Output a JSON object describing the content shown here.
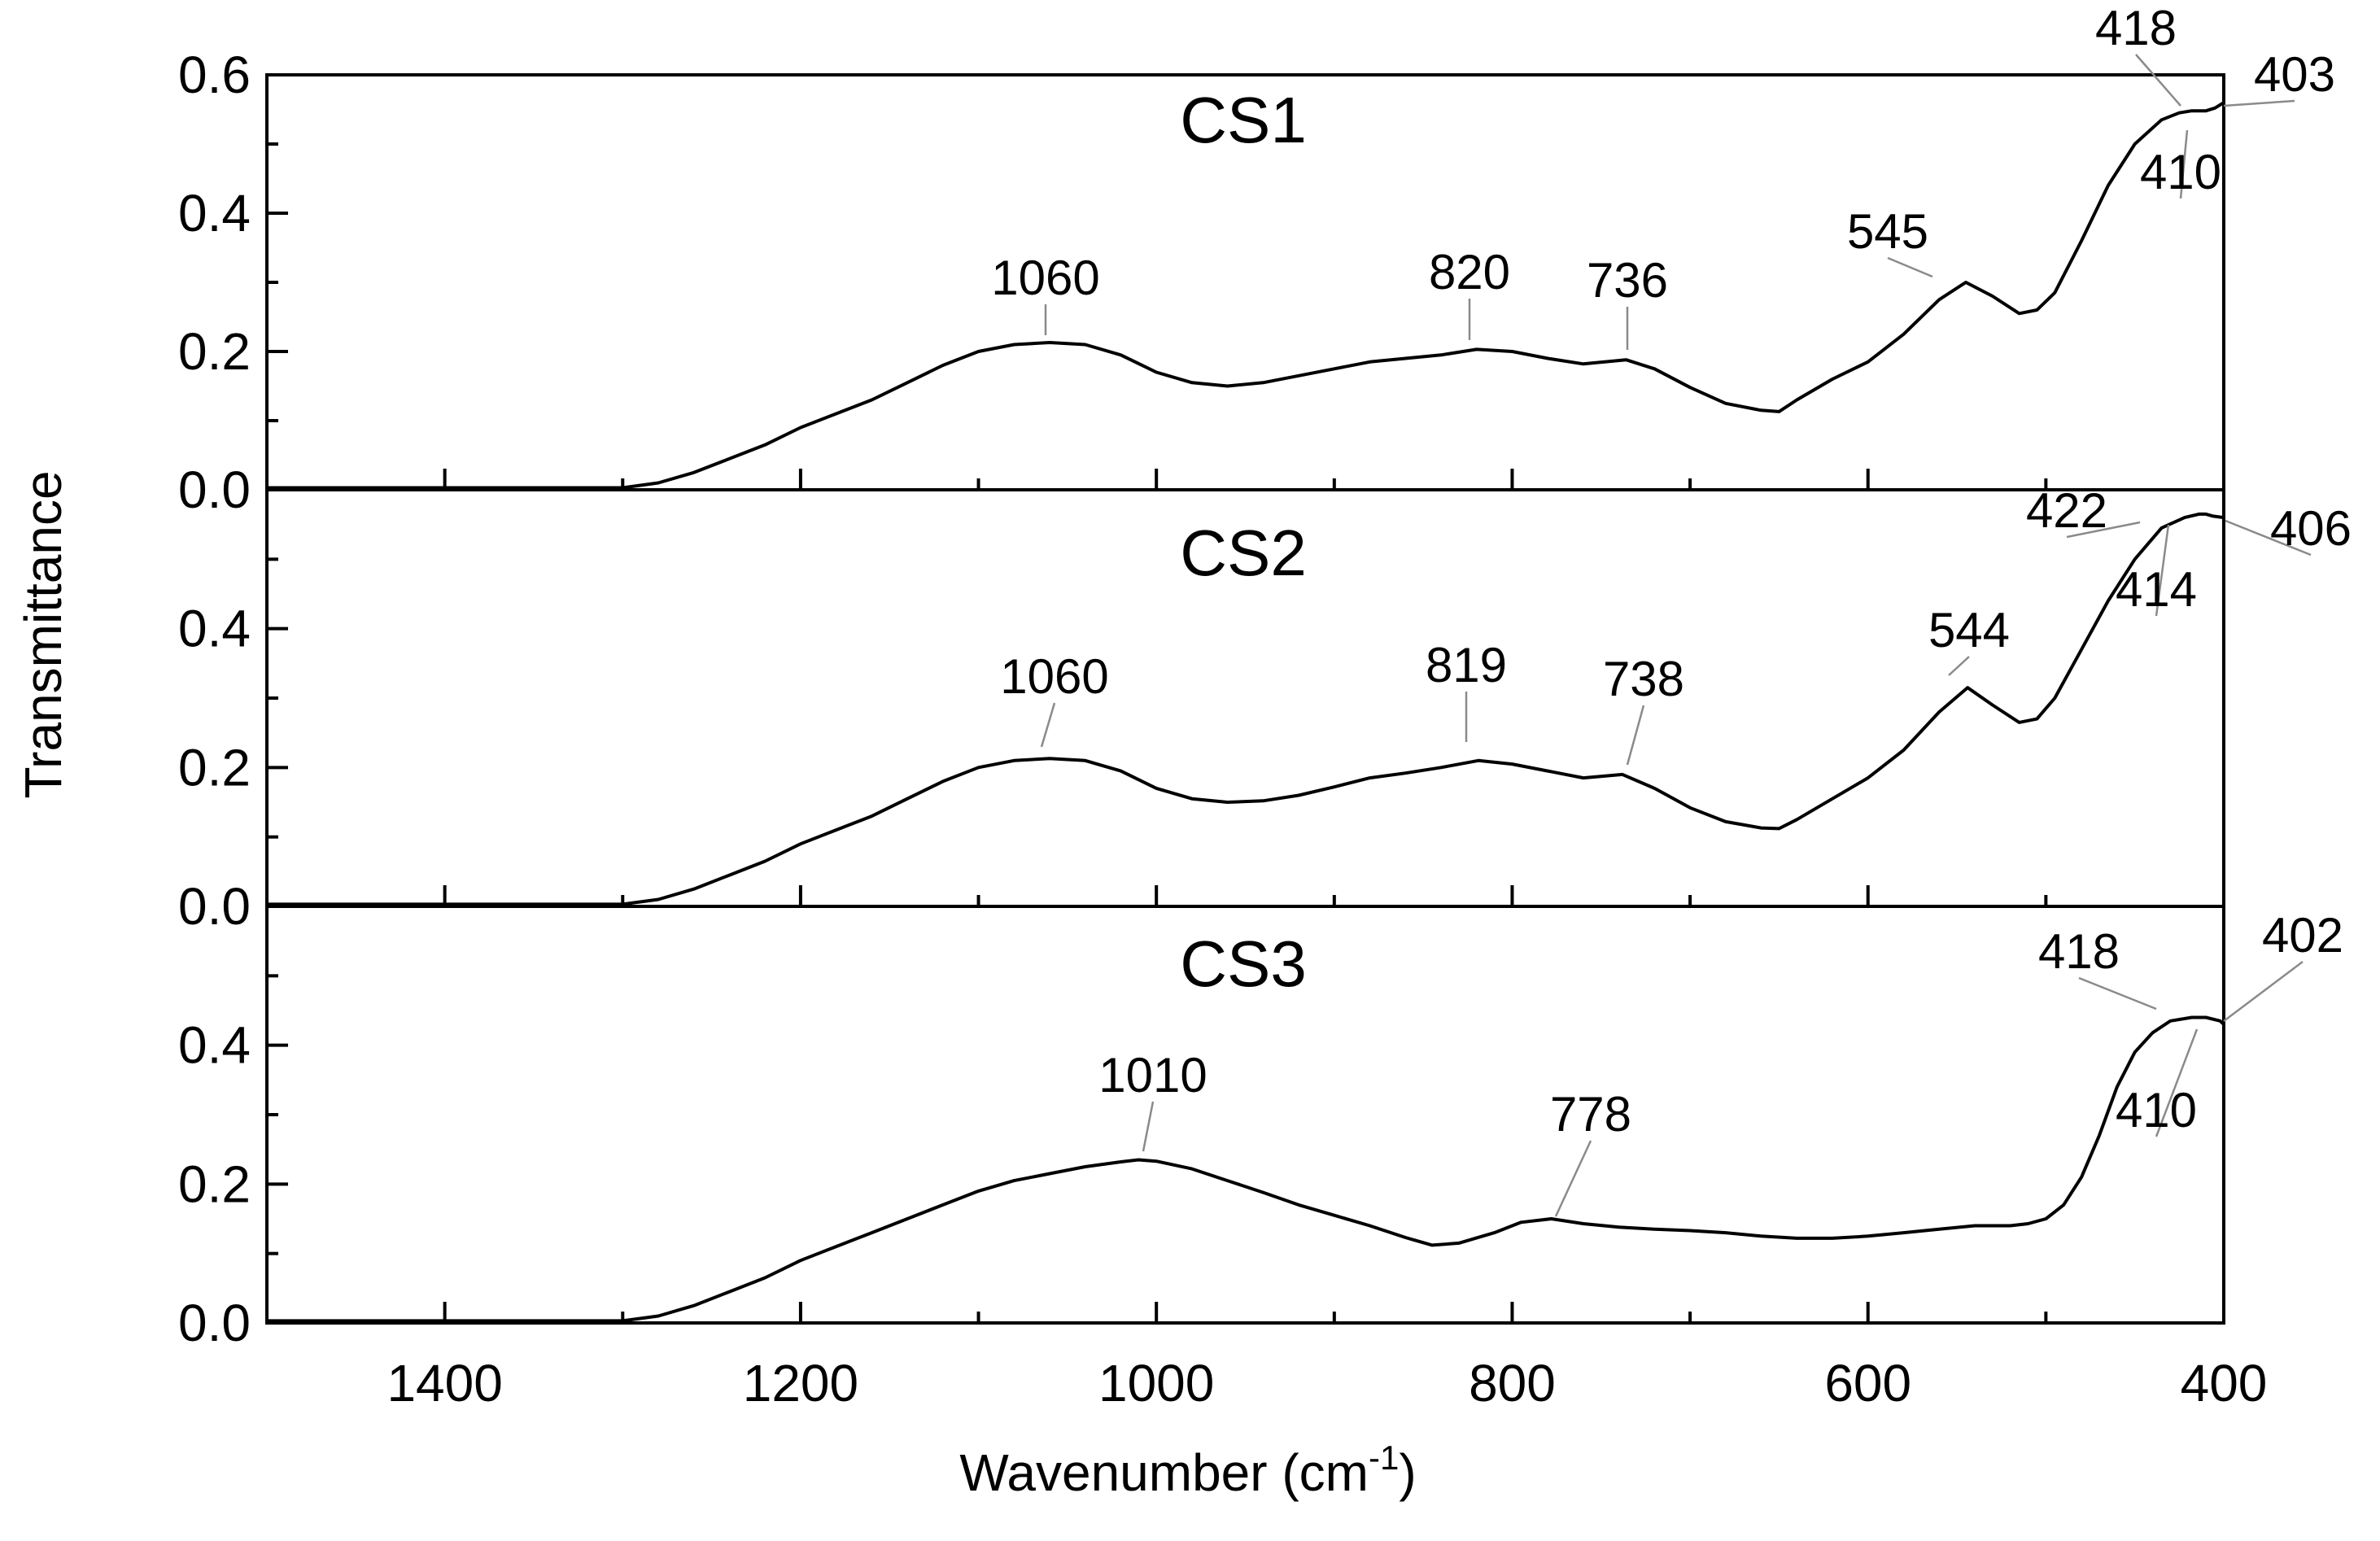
{
  "chart_data": {
    "type": "line",
    "xlabel": "Wavenumber (cm",
    "xlabel_sup": "-1",
    "xlabel_close": ")",
    "ylabel": "Transmittance",
    "xlim": [
      1500,
      400
    ],
    "x_ticks": [
      1400,
      1200,
      1000,
      800,
      600,
      400
    ],
    "panels": [
      {
        "name": "CS1",
        "ylim": [
          0,
          0.6
        ],
        "y_ticks": [
          "0.0",
          "0.2",
          "0.4",
          "0.6"
        ],
        "x": [
          1500,
          1400,
          1300,
          1280,
          1260,
          1240,
          1220,
          1200,
          1180,
          1160,
          1140,
          1120,
          1100,
          1080,
          1060,
          1040,
          1020,
          1000,
          980,
          960,
          940,
          920,
          900,
          880,
          860,
          840,
          820,
          800,
          780,
          760,
          736,
          720,
          700,
          680,
          660,
          650,
          640,
          620,
          600,
          580,
          560,
          545,
          530,
          515,
          505,
          495,
          480,
          465,
          450,
          435,
          425,
          418,
          410,
          405,
          403,
          400
        ],
        "y": [
          0.003,
          0.003,
          0.003,
          0.01,
          0.025,
          0.045,
          0.065,
          0.09,
          0.11,
          0.13,
          0.155,
          0.18,
          0.2,
          0.21,
          0.213,
          0.21,
          0.195,
          0.17,
          0.155,
          0.15,
          0.155,
          0.165,
          0.175,
          0.185,
          0.19,
          0.195,
          0.203,
          0.2,
          0.19,
          0.182,
          0.188,
          0.175,
          0.148,
          0.125,
          0.115,
          0.113,
          0.13,
          0.16,
          0.185,
          0.225,
          0.275,
          0.3,
          0.28,
          0.255,
          0.26,
          0.285,
          0.36,
          0.44,
          0.5,
          0.535,
          0.545,
          0.548,
          0.548,
          0.552,
          0.555,
          0.56
        ],
        "annotations": [
          {
            "label": "1060",
            "x": 1060
          },
          {
            "label": "820",
            "x": 820
          },
          {
            "label": "736",
            "x": 736
          },
          {
            "label": "545",
            "x": 545
          },
          {
            "label": "418",
            "x": 418
          },
          {
            "label": "410",
            "x": 410
          },
          {
            "label": "403",
            "x": 403
          }
        ]
      },
      {
        "name": "CS2",
        "ylim": [
          0,
          0.6
        ],
        "y_ticks": [
          "0.0",
          "0.2",
          "0.4"
        ],
        "x": [
          1500,
          1400,
          1300,
          1280,
          1260,
          1240,
          1220,
          1200,
          1180,
          1160,
          1140,
          1120,
          1100,
          1080,
          1060,
          1040,
          1020,
          1000,
          980,
          960,
          940,
          920,
          900,
          880,
          860,
          840,
          819,
          800,
          780,
          760,
          738,
          720,
          700,
          680,
          660,
          650,
          640,
          620,
          600,
          580,
          560,
          544,
          530,
          515,
          505,
          495,
          480,
          465,
          450,
          435,
          422,
          414,
          410,
          406,
          400
        ],
        "y": [
          0.003,
          0.003,
          0.003,
          0.01,
          0.025,
          0.045,
          0.065,
          0.09,
          0.11,
          0.13,
          0.155,
          0.18,
          0.2,
          0.21,
          0.213,
          0.21,
          0.195,
          0.17,
          0.155,
          0.15,
          0.152,
          0.16,
          0.172,
          0.185,
          0.192,
          0.2,
          0.21,
          0.205,
          0.195,
          0.185,
          0.19,
          0.17,
          0.142,
          0.122,
          0.113,
          0.112,
          0.125,
          0.155,
          0.185,
          0.225,
          0.28,
          0.315,
          0.29,
          0.265,
          0.27,
          0.3,
          0.37,
          0.44,
          0.5,
          0.545,
          0.56,
          0.565,
          0.565,
          0.562,
          0.56
        ],
        "annotations": [
          {
            "label": "1060",
            "x": 1060
          },
          {
            "label": "819",
            "x": 819
          },
          {
            "label": "738",
            "x": 738
          },
          {
            "label": "544",
            "x": 544
          },
          {
            "label": "422",
            "x": 422
          },
          {
            "label": "414",
            "x": 414
          },
          {
            "label": "406",
            "x": 406
          }
        ]
      },
      {
        "name": "CS3",
        "ylim": [
          0,
          0.6
        ],
        "y_ticks": [
          "0.0",
          "0.2",
          "0.4"
        ],
        "x": [
          1500,
          1400,
          1300,
          1280,
          1260,
          1240,
          1220,
          1200,
          1180,
          1160,
          1140,
          1120,
          1100,
          1080,
          1060,
          1040,
          1020,
          1010,
          1000,
          980,
          960,
          940,
          920,
          900,
          880,
          860,
          845,
          830,
          810,
          795,
          778,
          760,
          740,
          720,
          700,
          680,
          660,
          640,
          620,
          600,
          580,
          560,
          540,
          520,
          510,
          500,
          490,
          480,
          470,
          460,
          450,
          440,
          430,
          418,
          410,
          402,
          400
        ],
        "y": [
          0.003,
          0.003,
          0.003,
          0.01,
          0.025,
          0.045,
          0.065,
          0.09,
          0.11,
          0.13,
          0.15,
          0.17,
          0.19,
          0.205,
          0.215,
          0.225,
          0.232,
          0.235,
          0.233,
          0.222,
          0.205,
          0.188,
          0.17,
          0.155,
          0.14,
          0.123,
          0.112,
          0.115,
          0.13,
          0.145,
          0.15,
          0.143,
          0.138,
          0.135,
          0.133,
          0.13,
          0.125,
          0.122,
          0.122,
          0.125,
          0.13,
          0.135,
          0.14,
          0.14,
          0.143,
          0.15,
          0.17,
          0.21,
          0.27,
          0.34,
          0.39,
          0.418,
          0.435,
          0.44,
          0.44,
          0.435,
          0.43
        ],
        "annotations": [
          {
            "label": "1010",
            "x": 1010
          },
          {
            "label": "778",
            "x": 778
          },
          {
            "label": "418",
            "x": 418
          },
          {
            "label": "410",
            "x": 410
          },
          {
            "label": "402",
            "x": 402
          }
        ]
      }
    ]
  }
}
